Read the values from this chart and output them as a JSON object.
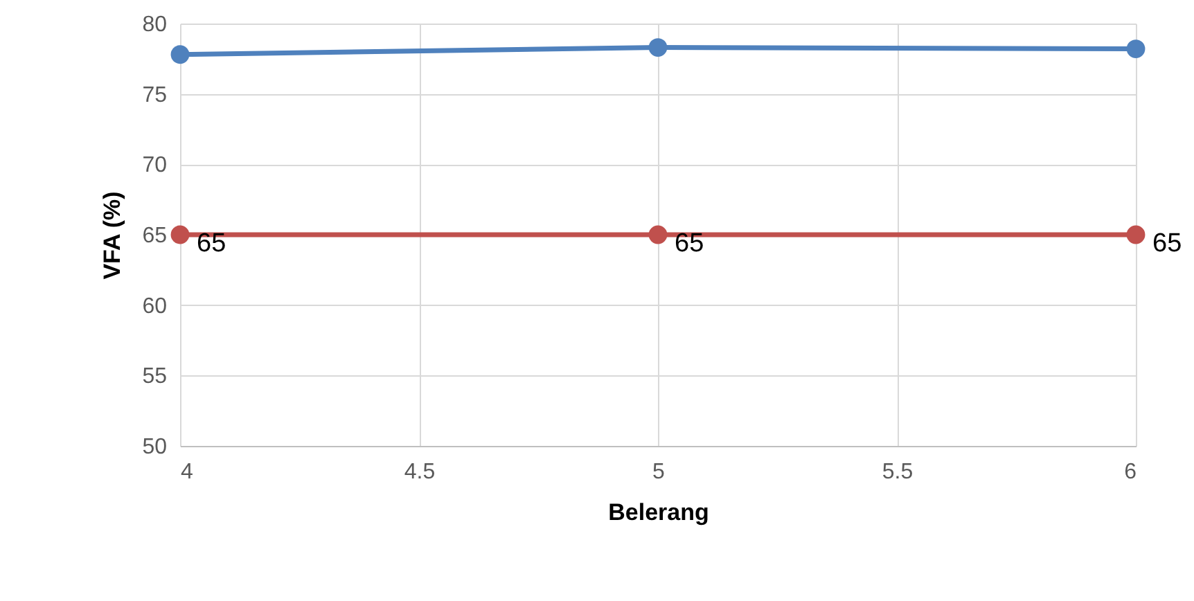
{
  "chart_data": {
    "type": "line",
    "xlabel": "Belerang",
    "ylabel": "VFA (%)",
    "x": [
      4,
      5,
      6
    ],
    "series": [
      {
        "color": "#4f81bd",
        "values": [
          77.8,
          78.3,
          78.2
        ]
      },
      {
        "color": "#c0504d",
        "values": [
          65,
          65,
          65
        ],
        "value_labels": [
          "65",
          "65",
          "65"
        ]
      }
    ],
    "xlim": [
      4,
      6
    ],
    "xticks": [
      4,
      4.5,
      5,
      5.5,
      6
    ],
    "ylim": [
      50,
      80
    ],
    "yticks": [
      50,
      55,
      60,
      65,
      70,
      75,
      80
    ],
    "grid": true,
    "marker": "circle",
    "line_style": "solid"
  }
}
